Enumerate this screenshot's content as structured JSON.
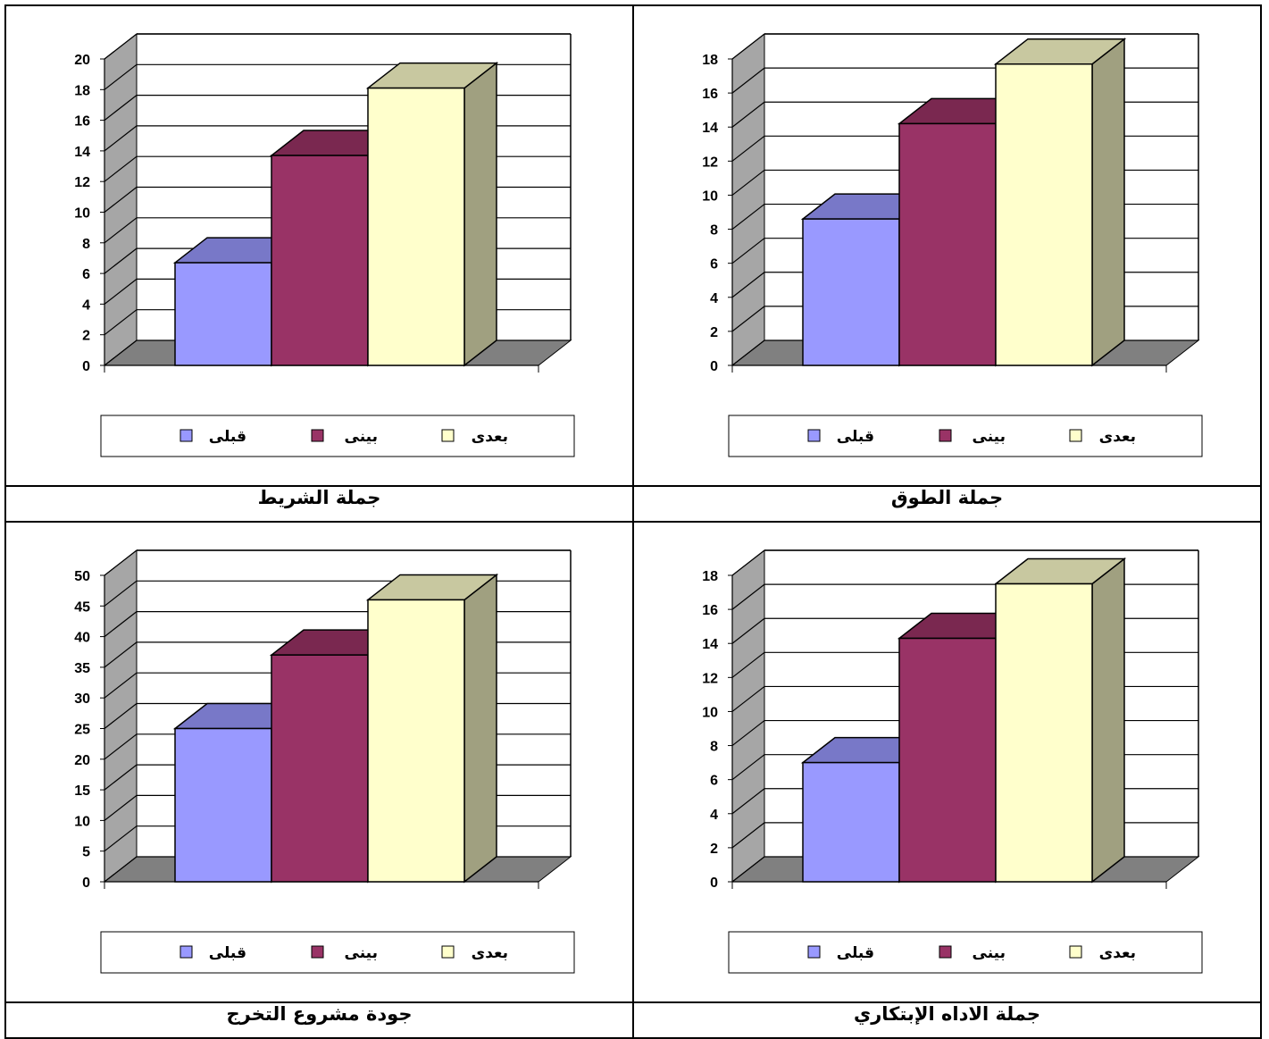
{
  "legend_labels": [
    "قبلى",
    "بينى",
    "بعدى"
  ],
  "colors": {
    "before": {
      "front": "#9999ff",
      "top": "#7878c8",
      "side": "#5a5aa0"
    },
    "between": {
      "front": "#993366",
      "top": "#7a2850",
      "side": "#5e1e3e"
    },
    "after": {
      "front": "#ffffcc",
      "top": "#c8c8a0",
      "side": "#a0a080"
    },
    "wall": "#a6a6a6",
    "floor": "#808080"
  },
  "chart_data": [
    {
      "type": "bar",
      "title": "جملة الشريط",
      "categories": [
        "قبلى",
        "بينى",
        "بعدى"
      ],
      "values": [
        6.7,
        13.7,
        18.1
      ],
      "ylim": [
        0,
        20
      ],
      "ytick_step": 2,
      "grid": true,
      "legend": "bottom"
    },
    {
      "type": "bar",
      "title": "جملة الطوق",
      "categories": [
        "قبلى",
        "بينى",
        "بعدى"
      ],
      "values": [
        8.6,
        14.2,
        17.7
      ],
      "ylim": [
        0,
        18
      ],
      "ytick_step": 2,
      "grid": true,
      "legend": "bottom"
    },
    {
      "type": "bar",
      "title": "جودة مشروع التخرج",
      "categories": [
        "قبلى",
        "بينى",
        "بعدى"
      ],
      "values": [
        25,
        37,
        46
      ],
      "ylim": [
        0,
        50
      ],
      "ytick_step": 5,
      "grid": true,
      "legend": "bottom"
    },
    {
      "type": "bar",
      "title": "جملة الاداه الإبتكاري",
      "categories": [
        "قبلى",
        "بينى",
        "بعدى"
      ],
      "values": [
        7,
        14.3,
        17.5
      ],
      "ylim": [
        0,
        18
      ],
      "ytick_step": 2,
      "grid": true,
      "legend": "bottom"
    }
  ]
}
